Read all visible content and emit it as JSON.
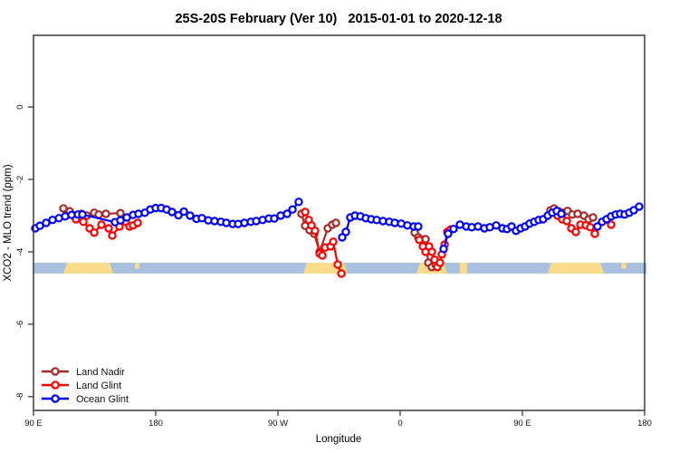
{
  "chart_data": {
    "type": "line",
    "title": "25S-20S February (Ver 10)   2015-01-01 to 2020-12-18",
    "xlabel": "Longitude",
    "ylabel": "XCO2 - MLO trend (ppm)",
    "x_ticks": [
      {
        "deg": 0,
        "label": "90 E"
      },
      {
        "deg": 90,
        "label": "180"
      },
      {
        "deg": 180,
        "label": "90 W"
      },
      {
        "deg": 270,
        "label": "0"
      },
      {
        "deg": 360,
        "label": "90 E"
      },
      {
        "deg": 450,
        "label": "180"
      }
    ],
    "y_ticks": [
      {
        "value": 0,
        "label": "0"
      },
      {
        "value": -2,
        "label": "-2"
      },
      {
        "value": -4,
        "label": "-4"
      },
      {
        "value": -6,
        "label": "-6"
      },
      {
        "value": -8,
        "label": "-8"
      }
    ],
    "xlim_deg": [
      0,
      450
    ],
    "ylim": [
      -8.38,
      1.98
    ],
    "grid": false,
    "legend_position": "bottom-left",
    "colors": {
      "land_nadir": "#A52A2A",
      "land_glint": "#FF0000",
      "ocean_glint": "#0000FF",
      "axis": "#3a3a3a"
    },
    "map_band": {
      "value_top": -4.3,
      "value_bottom": -4.6,
      "ocean_color": "#a9c0de",
      "land_color": "#fbdc8c",
      "land_patches_deg": [
        {
          "from": 22,
          "to": 58.7,
          "taper": true,
          "top_only": false,
          "name": "australia-west-pass"
        },
        {
          "from": 74.7,
          "to": 78,
          "taper": false,
          "top_only": true,
          "name": "new-caledonia-west-pass"
        },
        {
          "from": 198.7,
          "to": 231.3,
          "taper": true,
          "top_only": false,
          "name": "south-america"
        },
        {
          "from": 282,
          "to": 304.7,
          "taper": true,
          "top_only": false,
          "name": "southern-africa"
        },
        {
          "from": 314,
          "to": 319.3,
          "taper": false,
          "top_only": false,
          "name": "madagascar"
        },
        {
          "from": 378.7,
          "to": 420,
          "taper": true,
          "top_only": false,
          "name": "australia-east-pass"
        },
        {
          "from": 433,
          "to": 436.3,
          "taper": false,
          "top_only": true,
          "name": "new-caledonia-east-pass"
        }
      ]
    },
    "series": [
      {
        "name": "Land Nadir",
        "color": "#A52A2A",
        "segments": [
          [
            [
              22,
              -2.8
            ],
            [
              26.7,
              -2.88
            ],
            [
              35.3,
              -2.95
            ],
            [
              39.3,
              -3.0
            ],
            [
              44.7,
              -2.92
            ],
            [
              48,
              -2.97
            ],
            [
              53.3,
              -2.95
            ],
            [
              64,
              -2.93
            ]
          ],
          [
            [
              197.3,
              -2.95
            ],
            [
              200,
              -3.28
            ],
            [
              203.3,
              -3.4
            ],
            [
              206.7,
              -3.5
            ],
            [
              210.7,
              -4.0
            ],
            [
              216.7,
              -3.35
            ],
            [
              220,
              -3.25
            ],
            [
              222.7,
              -3.2
            ]
          ],
          [
            [
              280.7,
              -3.47
            ],
            [
              283.3,
              -3.6
            ],
            [
              286,
              -3.67
            ],
            [
              288.7,
              -3.65
            ],
            [
              290.7,
              -4.3
            ],
            [
              293.3,
              -4.42
            ],
            [
              296,
              -4.35
            ]
          ],
          [
            [
              380.7,
              -2.85
            ],
            [
              383.3,
              -2.8
            ],
            [
              386.7,
              -2.88
            ],
            [
              390,
              -2.92
            ],
            [
              393.3,
              -2.87
            ],
            [
              396.7,
              -2.97
            ],
            [
              400.7,
              -2.95
            ],
            [
              405.3,
              -3.0
            ],
            [
              408.7,
              -3.1
            ],
            [
              412,
              -3.05
            ]
          ]
        ]
      },
      {
        "name": "Land Glint",
        "color": "#FF0000",
        "segments": [
          [
            [
              31.3,
              -3.1
            ],
            [
              36.7,
              -3.17
            ],
            [
              41.3,
              -3.35
            ],
            [
              44.7,
              -3.47
            ],
            [
              50,
              -3.25
            ],
            [
              55.3,
              -3.35
            ],
            [
              58,
              -3.55
            ],
            [
              63.3,
              -3.3
            ],
            [
              68,
              -3.17
            ],
            [
              70.7,
              -3.3
            ],
            [
              73.3,
              -3.27
            ],
            [
              76.7,
              -3.2
            ]
          ],
          [
            [
              200,
              -2.9
            ],
            [
              202.7,
              -3.12
            ],
            [
              204.7,
              -3.27
            ],
            [
              207.3,
              -3.42
            ],
            [
              210.7,
              -4.05
            ],
            [
              212.7,
              -4.1
            ],
            [
              214.7,
              -3.88
            ],
            [
              218.7,
              -3.85
            ],
            [
              220.7,
              -3.72
            ],
            [
              224,
              -4.35
            ],
            [
              226.7,
              -4.6
            ]
          ],
          [
            [
              284,
              -3.67
            ],
            [
              286.7,
              -3.85
            ],
            [
              288.7,
              -4.0
            ],
            [
              291.3,
              -3.85
            ],
            [
              293.3,
              -4.0
            ],
            [
              295.3,
              -4.22
            ],
            [
              297.3,
              -4.42
            ],
            [
              299.3,
              -4.3
            ],
            [
              300.7,
              -4.07
            ],
            [
              302.7,
              -3.8
            ],
            [
              304.7,
              -3.45
            ],
            [
              307.3,
              -3.38
            ]
          ],
          [
            [
              386,
              -3.0
            ],
            [
              389.3,
              -3.1
            ],
            [
              392.7,
              -3.15
            ],
            [
              396,
              -3.35
            ],
            [
              399.3,
              -3.45
            ],
            [
              402.7,
              -3.25
            ],
            [
              406.7,
              -3.27
            ],
            [
              410,
              -3.32
            ],
            [
              413.3,
              -3.5
            ]
          ],
          [
            [
              425.3,
              -3.25
            ]
          ]
        ]
      },
      {
        "name": "Ocean Glint",
        "color": "#0000FF",
        "segments": [
          [
            [
              1.3,
              -3.35
            ],
            [
              4.7,
              -3.28
            ],
            [
              9.3,
              -3.2
            ],
            [
              14,
              -3.12
            ],
            [
              18.7,
              -3.07
            ],
            [
              23.3,
              -3.02
            ],
            [
              28,
              -2.98
            ],
            [
              32.7,
              -2.97
            ],
            [
              36,
              -2.97
            ],
            [
              60,
              -3.18
            ],
            [
              64,
              -3.13
            ],
            [
              68.7,
              -3.05
            ],
            [
              73.3,
              -2.98
            ],
            [
              77.3,
              -2.95
            ],
            [
              82,
              -2.92
            ],
            [
              86,
              -2.83
            ],
            [
              90,
              -2.79
            ],
            [
              94,
              -2.79
            ],
            [
              98,
              -2.83
            ],
            [
              102,
              -2.9
            ],
            [
              106.7,
              -2.99
            ],
            [
              110.7,
              -2.89
            ],
            [
              115.3,
              -3.0
            ],
            [
              120,
              -3.09
            ],
            [
              124,
              -3.07
            ],
            [
              128.7,
              -3.13
            ],
            [
              133.3,
              -3.15
            ],
            [
              138,
              -3.17
            ],
            [
              142,
              -3.2
            ],
            [
              146.7,
              -3.23
            ],
            [
              150.7,
              -3.23
            ],
            [
              155.3,
              -3.2
            ],
            [
              160,
              -3.17
            ],
            [
              164,
              -3.15
            ],
            [
              168.7,
              -3.12
            ],
            [
              173.3,
              -3.08
            ],
            [
              177.3,
              -3.08
            ],
            [
              182,
              -3.0
            ],
            [
              186.7,
              -2.95
            ],
            [
              190.7,
              -2.83
            ],
            [
              195.3,
              -2.62
            ]
          ],
          [
            [
              227.3,
              -3.6
            ],
            [
              230,
              -3.45
            ],
            [
              233.3,
              -3.05
            ],
            [
              236.7,
              -3.0
            ],
            [
              240.7,
              -3.02
            ],
            [
              244.7,
              -3.07
            ],
            [
              248.7,
              -3.1
            ],
            [
              252.7,
              -3.12
            ],
            [
              257.3,
              -3.15
            ],
            [
              262,
              -3.17
            ],
            [
              266,
              -3.2
            ],
            [
              270.7,
              -3.22
            ],
            [
              275.3,
              -3.27
            ],
            [
              280,
              -3.3
            ],
            [
              283.3,
              -3.3
            ]
          ],
          [
            [
              302,
              -3.92
            ],
            [
              305.3,
              -3.5
            ],
            [
              309.3,
              -3.37
            ],
            [
              314,
              -3.25
            ],
            [
              318.7,
              -3.3
            ],
            [
              322.7,
              -3.32
            ],
            [
              327.3,
              -3.3
            ],
            [
              332,
              -3.35
            ],
            [
              336,
              -3.32
            ],
            [
              340.7,
              -3.27
            ],
            [
              345.3,
              -3.35
            ],
            [
              348.7,
              -3.37
            ],
            [
              352,
              -3.3
            ],
            [
              355.3,
              -3.42
            ],
            [
              358.7,
              -3.35
            ],
            [
              362,
              -3.3
            ],
            [
              365.3,
              -3.22
            ],
            [
              368.7,
              -3.17
            ],
            [
              372,
              -3.12
            ],
            [
              375.3,
              -3.1
            ],
            [
              378.7,
              -3.0
            ],
            [
              382,
              -2.92
            ],
            [
              385.3,
              -2.87
            ],
            [
              388.7,
              -2.95
            ]
          ],
          [
            [
              415.3,
              -3.3
            ],
            [
              418.7,
              -3.17
            ],
            [
              422,
              -3.1
            ],
            [
              425.3,
              -3.02
            ],
            [
              428.7,
              -2.97
            ],
            [
              432,
              -2.95
            ],
            [
              435.3,
              -2.97
            ],
            [
              438.7,
              -2.92
            ],
            [
              442,
              -2.85
            ],
            [
              446,
              -2.75
            ]
          ]
        ]
      }
    ],
    "legend": {
      "items": [
        {
          "label": "Land Nadir",
          "color": "#A52A2A"
        },
        {
          "label": "Land Glint",
          "color": "#FF0000"
        },
        {
          "label": "Ocean Glint",
          "color": "#0000FF"
        }
      ]
    }
  }
}
